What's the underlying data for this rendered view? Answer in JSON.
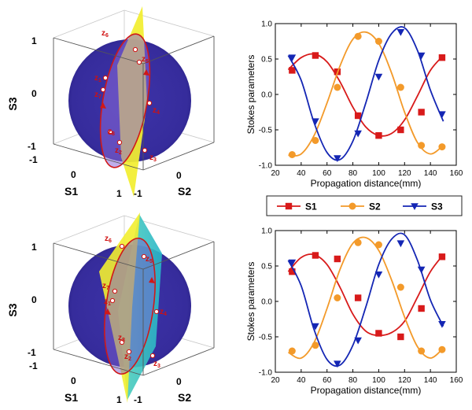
{
  "colors": {
    "S1": "#d81a1a",
    "S2": "#f39a2a",
    "S3": "#1426b4",
    "sphere": "#3a2fa0",
    "plane_yellow": "#f2ee30",
    "plane_cyan": "#38c8c8",
    "point_label": "#d01010"
  },
  "legend": {
    "entries": [
      {
        "key": "S1",
        "label": "S1",
        "marker": "square"
      },
      {
        "key": "S2",
        "label": "S2",
        "marker": "circle"
      },
      {
        "key": "S3",
        "label": "S3",
        "marker": "triangle-down"
      }
    ]
  },
  "spheres": [
    {
      "axis_labels": {
        "s1": "S1",
        "s2": "S2",
        "s3": "S3"
      },
      "ticks": {
        "s3_top": "1",
        "s3_mid": "0",
        "s3_bot": "-1",
        "s1_left": "-1",
        "s1_mid": "0",
        "s1_right": "1",
        "s2_left": "-1",
        "s2_mid": "0",
        "s2_right": "1"
      },
      "points": [
        {
          "label": "z6",
          "base": "z",
          "sub": "6"
        },
        {
          "label": "z5",
          "base": "z",
          "sub": "5"
        },
        {
          "label": "z4",
          "base": "z",
          "sub": "4"
        },
        {
          "label": "z1",
          "base": "z",
          "sub": "1"
        },
        {
          "label": "z7",
          "base": "z",
          "sub": "7"
        },
        {
          "label": "z8",
          "base": "z",
          "sub": "8"
        },
        {
          "label": "z2",
          "base": "z",
          "sub": "2"
        },
        {
          "label": "z3",
          "base": "z",
          "sub": "3"
        }
      ]
    },
    {
      "axis_labels": {
        "s1": "S1",
        "s2": "S2",
        "s3": "S3"
      },
      "ticks": {
        "s3_top": "1",
        "s3_mid": "0",
        "s3_bot": "-1",
        "s1_left": "-1",
        "s1_mid": "0",
        "s1_right": "1",
        "s2_left": "-1",
        "s2_mid": "0",
        "s2_right": "1"
      },
      "points": [
        {
          "label": "z6",
          "base": "z",
          "sub": "6"
        },
        {
          "label": "z5",
          "base": "z",
          "sub": "5"
        },
        {
          "label": "z7",
          "base": "z",
          "sub": "7"
        },
        {
          "label": "z1",
          "base": "z",
          "sub": "1"
        },
        {
          "label": "z4",
          "base": "z",
          "sub": "4"
        },
        {
          "label": "z8",
          "base": "z",
          "sub": "8"
        },
        {
          "label": "z2",
          "base": "z",
          "sub": "2"
        },
        {
          "label": "z3",
          "base": "z",
          "sub": "3"
        }
      ]
    }
  ],
  "chart_data": [
    {
      "type": "line",
      "xlabel": "Propagation distance(mm)",
      "ylabel": "Stokes parameters",
      "xlim": [
        20,
        160
      ],
      "ylim": [
        -1.0,
        1.0
      ],
      "xticks": [
        20,
        40,
        60,
        80,
        100,
        120,
        140,
        160
      ],
      "yticks": [
        -1.0,
        -0.5,
        0.0,
        0.5,
        1.0
      ],
      "ytick_labels": [
        "-1.0",
        "-0.5",
        "0.0",
        "0.5",
        "1.0"
      ],
      "grid": false,
      "series": [
        {
          "name": "S1",
          "key": "S1",
          "markers": {
            "x": [
              33,
              51,
              68,
              84,
              100,
              117,
              133,
              149
            ],
            "y": [
              0.34,
              0.55,
              0.32,
              -0.3,
              -0.58,
              -0.5,
              -0.25,
              0.52
            ]
          },
          "curve": {
            "x": [
              30,
              40,
              50,
              60,
              70,
              80,
              90,
              100,
              110,
              120,
              130,
              140,
              150
            ],
            "y": [
              0.35,
              0.52,
              0.57,
              0.46,
              0.18,
              -0.18,
              -0.46,
              -0.58,
              -0.55,
              -0.36,
              -0.02,
              0.34,
              0.55
            ]
          }
        },
        {
          "name": "S2",
          "key": "S2",
          "markers": {
            "x": [
              33,
              51,
              68,
              84,
              100,
              117,
              133,
              149
            ],
            "y": [
              -0.85,
              -0.65,
              0.1,
              0.82,
              0.75,
              0.1,
              -0.72,
              -0.74
            ]
          },
          "curve": {
            "x": [
              30,
              40,
              50,
              60,
              70,
              80,
              90,
              100,
              110,
              120,
              130,
              140,
              150
            ],
            "y": [
              -0.86,
              -0.84,
              -0.58,
              -0.12,
              0.4,
              0.78,
              0.88,
              0.72,
              0.3,
              -0.25,
              -0.68,
              -0.84,
              -0.72
            ]
          }
        },
        {
          "name": "S3",
          "key": "S3",
          "markers": {
            "x": [
              33,
              51,
              68,
              84,
              100,
              117,
              133,
              149
            ],
            "y": [
              0.52,
              -0.38,
              -0.9,
              -0.55,
              0.25,
              0.88,
              0.55,
              -0.28
            ]
          },
          "curve": {
            "x": [
              30,
              40,
              50,
              60,
              70,
              80,
              90,
              100,
              110,
              120,
              130,
              140,
              150
            ],
            "y": [
              0.55,
              0.2,
              -0.4,
              -0.82,
              -0.92,
              -0.66,
              -0.12,
              0.48,
              0.86,
              0.94,
              0.62,
              0.06,
              -0.38
            ]
          }
        }
      ]
    },
    {
      "type": "line",
      "xlabel": "Propagation distance(mm)",
      "ylabel": "Stokes parameters",
      "xlim": [
        20,
        160
      ],
      "ylim": [
        -1.0,
        1.0
      ],
      "xticks": [
        20,
        40,
        60,
        80,
        100,
        120,
        140,
        160
      ],
      "yticks": [
        -1.0,
        -0.5,
        0.0,
        0.5,
        1.0
      ],
      "ytick_labels": [
        "-1.0",
        "-0.5",
        "0.0",
        "0.5",
        "1.0"
      ],
      "grid": false,
      "series": [
        {
          "name": "S1",
          "key": "S1",
          "markers": {
            "x": [
              33,
              51,
              68,
              84,
              100,
              117,
              133,
              149
            ],
            "y": [
              0.42,
              0.65,
              0.6,
              0.05,
              -0.45,
              -0.5,
              -0.1,
              0.63
            ]
          },
          "curve": {
            "x": [
              30,
              40,
              50,
              60,
              70,
              80,
              90,
              100,
              110,
              120,
              130,
              140,
              150
            ],
            "y": [
              0.42,
              0.62,
              0.66,
              0.52,
              0.2,
              -0.18,
              -0.42,
              -0.48,
              -0.44,
              -0.28,
              0.06,
              0.42,
              0.66
            ]
          }
        },
        {
          "name": "S2",
          "key": "S2",
          "markers": {
            "x": [
              33,
              51,
              68,
              84,
              100,
              117,
              133,
              149
            ],
            "y": [
              -0.7,
              -0.62,
              0.05,
              0.83,
              0.8,
              0.2,
              -0.7,
              -0.68
            ]
          },
          "curve": {
            "x": [
              30,
              40,
              50,
              60,
              70,
              80,
              90,
              100,
              110,
              120,
              130,
              140,
              150
            ],
            "y": [
              -0.72,
              -0.8,
              -0.58,
              -0.1,
              0.45,
              0.82,
              0.9,
              0.72,
              0.3,
              -0.22,
              -0.64,
              -0.8,
              -0.66
            ]
          }
        },
        {
          "name": "S3",
          "key": "S3",
          "markers": {
            "x": [
              33,
              51,
              68,
              84,
              100,
              117,
              133,
              149
            ],
            "y": [
              0.55,
              -0.35,
              -0.88,
              -0.55,
              0.38,
              0.82,
              0.45,
              -0.32
            ]
          },
          "curve": {
            "x": [
              30,
              40,
              50,
              60,
              70,
              80,
              90,
              100,
              110,
              120,
              130,
              140,
              150
            ],
            "y": [
              0.58,
              0.22,
              -0.4,
              -0.82,
              -0.9,
              -0.62,
              -0.08,
              0.52,
              0.88,
              0.94,
              0.58,
              0.02,
              -0.35
            ]
          }
        }
      ]
    }
  ]
}
